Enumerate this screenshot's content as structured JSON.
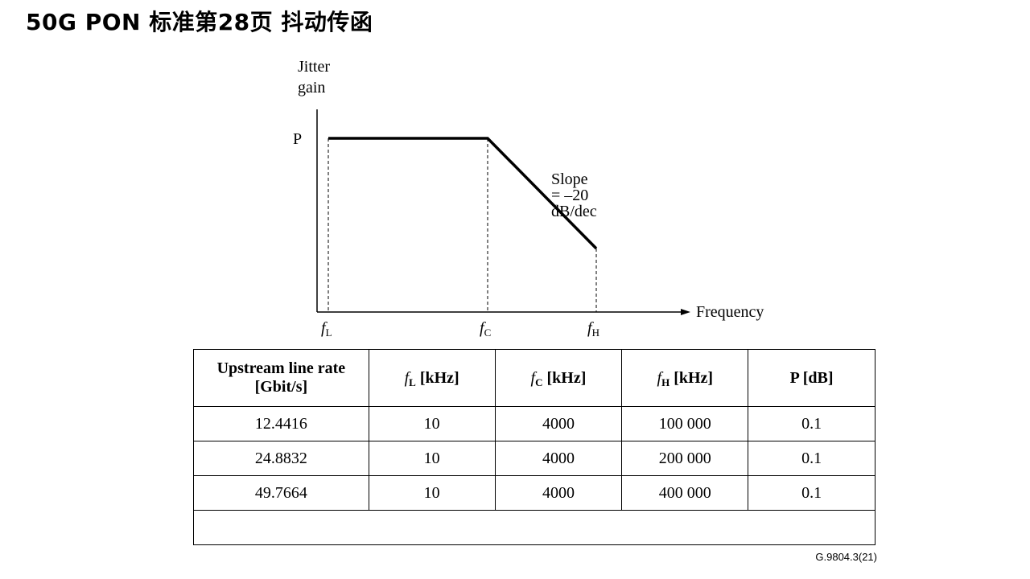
{
  "page_title": "50G PON 标准第28页 抖动传函",
  "diagram": {
    "y_axis_label_line1": "Jitter",
    "y_axis_label_line2": "gain",
    "p_label": "P",
    "slope_label": "Slope = –20 dB/dec",
    "x_axis_label": "Frequency",
    "f_symbol": "f",
    "fl_sub": "L",
    "fc_sub": "C",
    "fh_sub": "H"
  },
  "table": {
    "headers": {
      "rate_line1": "Upstream line rate",
      "rate_line2": "[Gbit/s]",
      "fl_unit": "[kHz]",
      "fc_unit": "[kHz]",
      "fh_unit": "[kHz]",
      "p": "P [dB]"
    },
    "rows": [
      [
        "12.4416",
        "10",
        "4000",
        "100 000",
        "0.1"
      ],
      [
        "24.8832",
        "10",
        "4000",
        "200 000",
        "0.1"
      ],
      [
        "49.7664",
        "10",
        "4000",
        "400 000",
        "0.1"
      ]
    ]
  },
  "reference": "G.9804.3(21)"
}
